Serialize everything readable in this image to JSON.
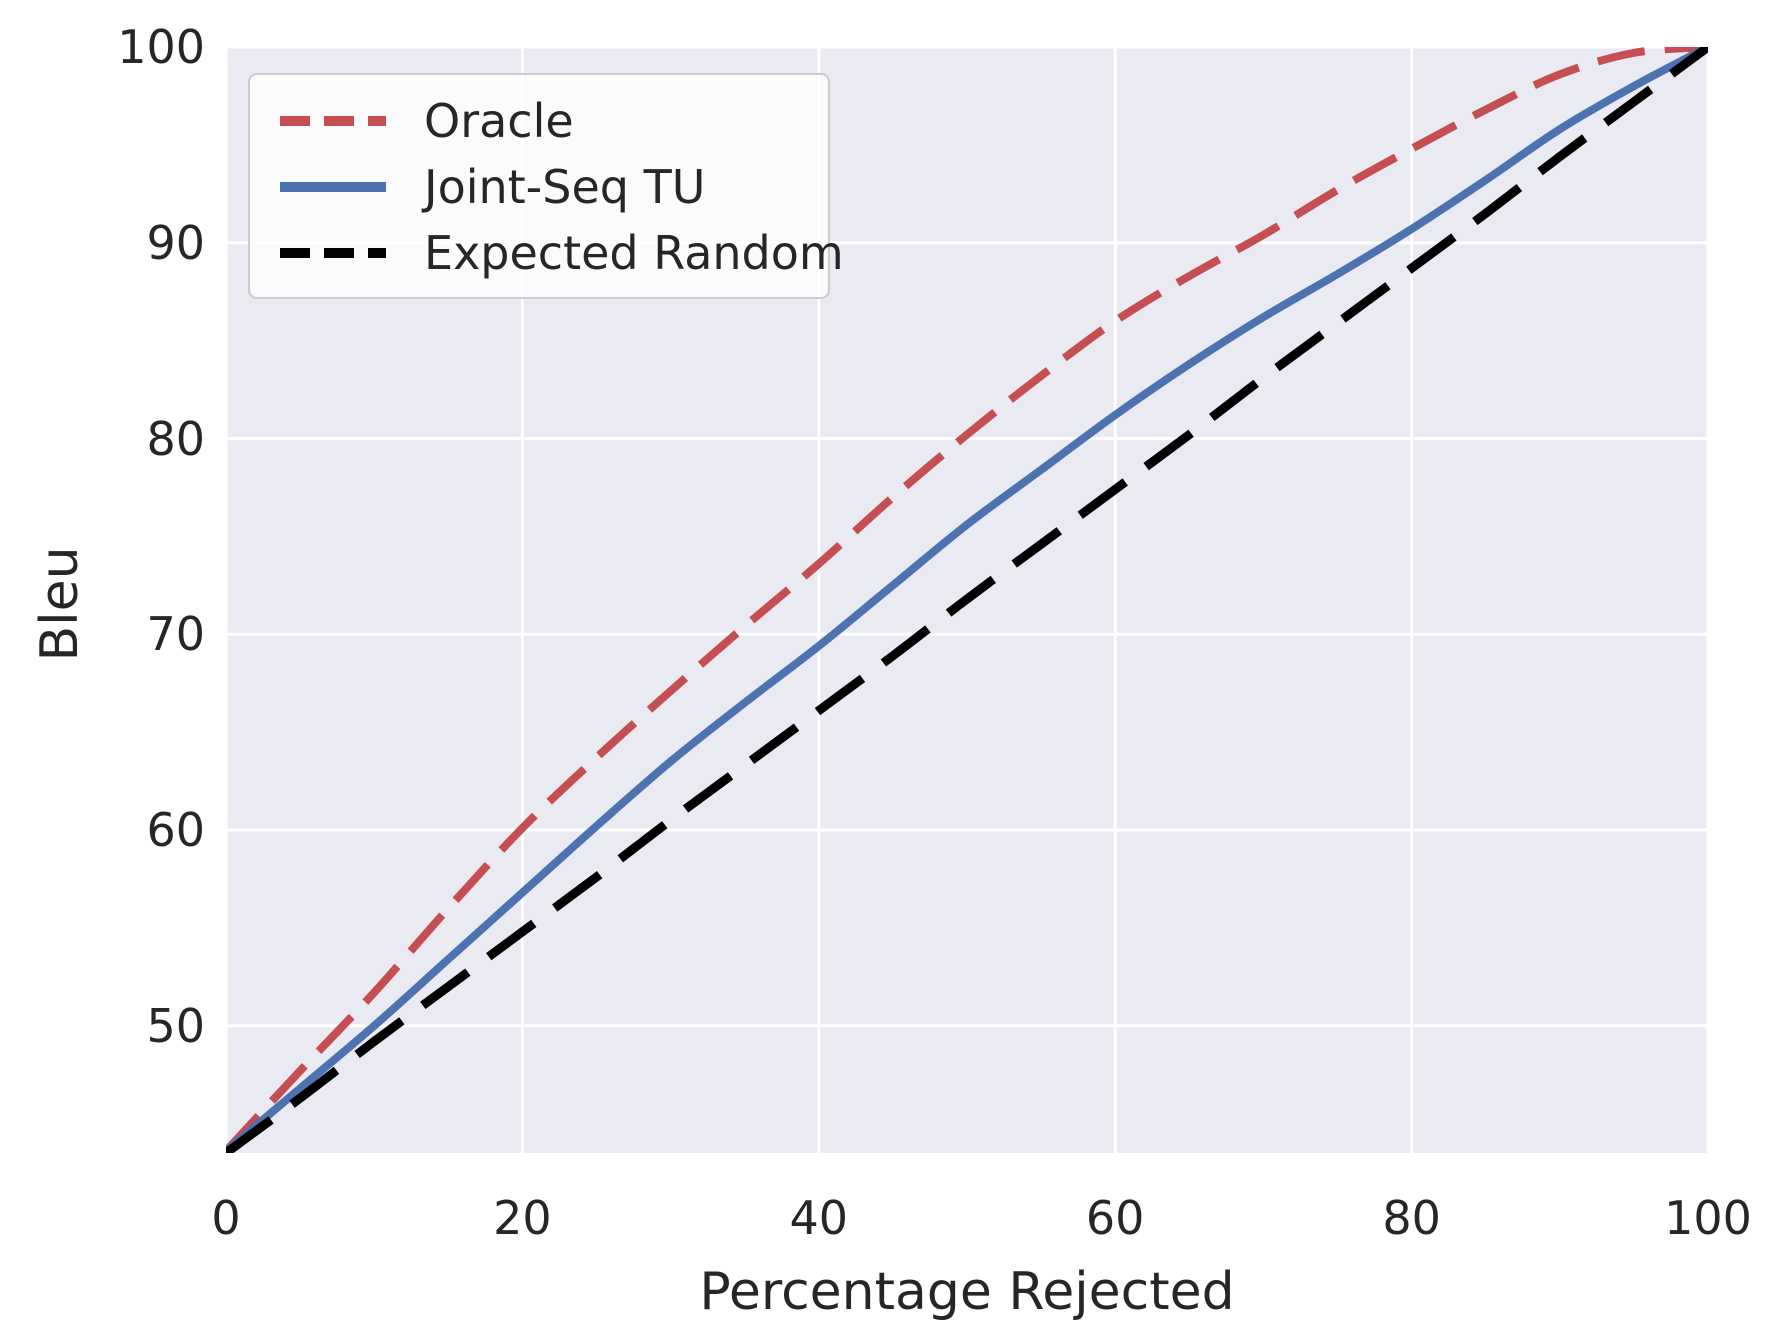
{
  "chart_data": {
    "type": "line",
    "title": "",
    "xlabel": "Percentage Rejected",
    "ylabel": "Bleu",
    "xlim": [
      0,
      100
    ],
    "ylim": [
      43.5,
      100
    ],
    "x_ticks": [
      0,
      20,
      40,
      60,
      80,
      100
    ],
    "y_ticks": [
      50,
      60,
      70,
      80,
      90,
      100
    ],
    "grid": true,
    "grid_color": "#ffffff",
    "plot_background": "#eaeaf2",
    "text_color": "#262626",
    "legend_position": "upper left",
    "x": [
      0,
      5,
      10,
      15,
      20,
      25,
      30,
      35,
      40,
      45,
      50,
      55,
      60,
      65,
      70,
      75,
      80,
      85,
      90,
      95,
      100
    ],
    "series": [
      {
        "name": "Oracle",
        "color": "#c44e52",
        "linestyle": "dashed",
        "dash": [
          48,
          20
        ],
        "width": 8,
        "values": [
          43.6,
          47.7,
          51.7,
          56.0,
          60.1,
          63.7,
          67.1,
          70.4,
          73.6,
          77.0,
          80.2,
          83.2,
          86.0,
          88.3,
          90.4,
          92.7,
          94.8,
          96.8,
          98.6,
          99.7,
          100
        ]
      },
      {
        "name": "Joint-Seq TU",
        "color": "#4c72b0",
        "linestyle": "solid",
        "dash": null,
        "width": 8,
        "values": [
          43.6,
          46.8,
          50.0,
          53.4,
          56.8,
          60.2,
          63.5,
          66.5,
          69.4,
          72.5,
          75.6,
          78.4,
          81.2,
          83.8,
          86.2,
          88.4,
          90.7,
          93.2,
          95.8,
          98.0,
          100
        ]
      },
      {
        "name": "Expected Random",
        "color": "#000000",
        "linestyle": "dashed",
        "dash": [
          56,
          26
        ],
        "width": 9,
        "values": [
          43.5,
          46.3,
          49.2,
          52.0,
          54.8,
          57.6,
          60.5,
          63.3,
          66.1,
          68.9,
          71.8,
          74.6,
          77.4,
          80.2,
          83.1,
          85.9,
          88.7,
          91.5,
          94.4,
          97.2,
          100
        ]
      }
    ]
  }
}
